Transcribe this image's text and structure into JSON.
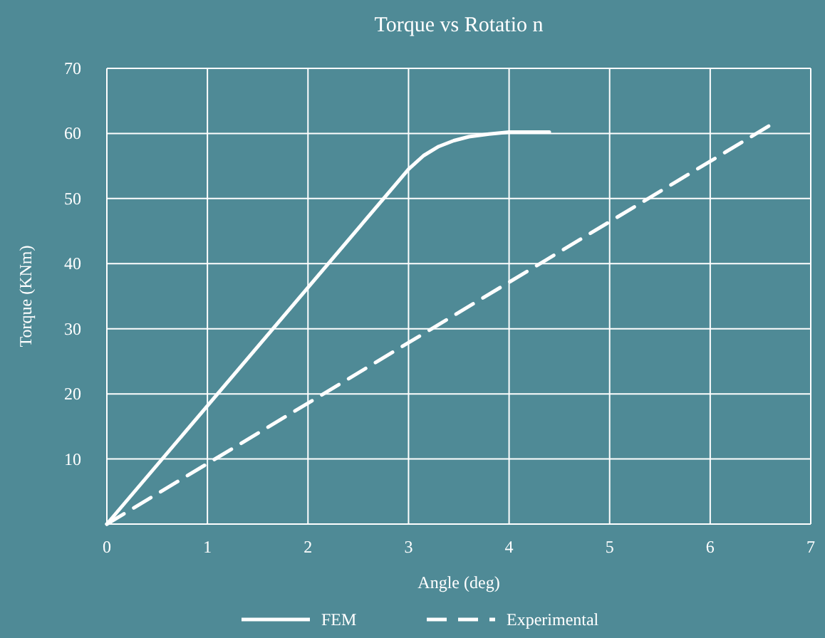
{
  "chart_data": {
    "type": "line",
    "title": "Torque  vs Rotatio n",
    "xlabel": "Angle (deg)",
    "ylabel": "Torque  (KNm)",
    "xlim": [
      0,
      7
    ],
    "xticks": [
      0,
      1,
      2,
      3,
      4,
      5,
      6,
      7
    ],
    "ylim": [
      0,
      70
    ],
    "yticks": [
      {
        "value": 0,
        "label": null
      },
      10,
      20,
      30,
      40,
      50,
      60,
      70
    ],
    "grid": true,
    "legend": "bottom",
    "series": [
      {
        "name": "FEM",
        "color": "#ffffff",
        "line_style": "solid",
        "x": [
          0,
          3,
          3.15,
          3.3,
          3.45,
          3.6,
          3.8,
          4,
          4.2,
          4.4
        ],
        "values": [
          0,
          54.5,
          56.6,
          58,
          58.9,
          59.5,
          59.9,
          60.2,
          60.2,
          60.2
        ]
      },
      {
        "name": "Experimental",
        "color": "#ffffff",
        "line_style": "dashed",
        "x": [
          0,
          6.6
        ],
        "values": [
          0,
          61.3
        ]
      }
    ]
  }
}
